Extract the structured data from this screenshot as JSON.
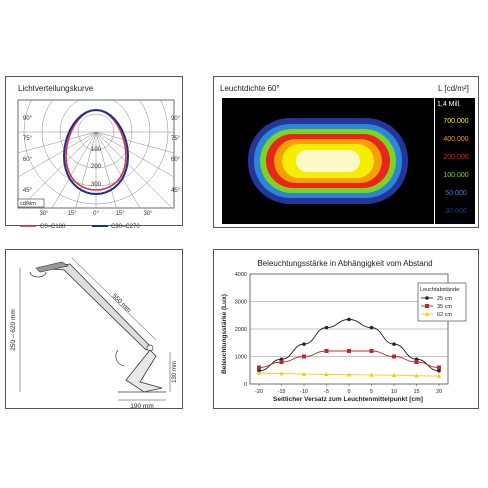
{
  "colors": {
    "c0_c180": "#d9304a",
    "c90_c270": "#1a2f86",
    "series_25": "#222222",
    "series_35": "#c0262c",
    "series_62": "#f0d000"
  },
  "polar": {
    "title": "Lichtverteilungskurve",
    "unit": "cd/klm",
    "angle_labels_left": [
      "90°",
      "75°",
      "60°",
      "45°"
    ],
    "angle_labels_right": [
      "90°",
      "75°",
      "60°",
      "45°"
    ],
    "bottom_angles": [
      "30°",
      "15°",
      "0°",
      "15°",
      "30°"
    ],
    "radial_labels": [
      "100",
      "200",
      "300"
    ],
    "legend_c0": "C0–C180",
    "legend_c90": "C90–C270"
  },
  "luminance": {
    "title": "Leuchtdichte 60°",
    "unit": "L [cd/m²]",
    "peak": "1,4 Mill.",
    "scale": [
      {
        "label": "700.000",
        "color": "#f6ee00"
      },
      {
        "label": "400.000",
        "color": "#f5a000"
      },
      {
        "label": "200.000",
        "color": "#e8241c"
      },
      {
        "label": "100.000",
        "color": "#7ed321"
      },
      {
        "label": "50.000",
        "color": "#2a86d8"
      },
      {
        "label": "30.000",
        "color": "#27359a"
      }
    ]
  },
  "dimensions": {
    "arm_length": "550 mm",
    "height_range": "250 – 620 mm",
    "foot_height": "130 mm",
    "base_width": "190 mm"
  },
  "chart_data": {
    "type": "line",
    "title": "Beleuchtungsstärke in Abhängigkeit vom Abstand",
    "xlabel": "Seitlicher Versatz zum Leuchtenmittelpunkt [cm]",
    "ylabel": "Beleuchtungsstärke (Lux)",
    "x": [
      -20,
      -15,
      -10,
      -5,
      0,
      5,
      10,
      15,
      20
    ],
    "xlim": [
      -22,
      22
    ],
    "ylim": [
      0,
      4000
    ],
    "yticks": [
      "0",
      "1000",
      "2000",
      "3000",
      "4000"
    ],
    "xticks": [
      "-20",
      "-15",
      "-10",
      "-5",
      "0",
      "5",
      "10",
      "15",
      "20"
    ],
    "grid": true,
    "legend_title": "Leuchtabstände:",
    "legend_position": "top-right",
    "series": [
      {
        "name": "25 cm",
        "values": [
          480,
          900,
          1450,
          2050,
          2350,
          2050,
          1450,
          900,
          480
        ]
      },
      {
        "name": "35 cm",
        "values": [
          600,
          800,
          1000,
          1200,
          1200,
          1200,
          1000,
          800,
          600
        ]
      },
      {
        "name": "62 cm",
        "values": [
          400,
          380,
          360,
          350,
          340,
          330,
          320,
          300,
          290
        ]
      }
    ]
  }
}
